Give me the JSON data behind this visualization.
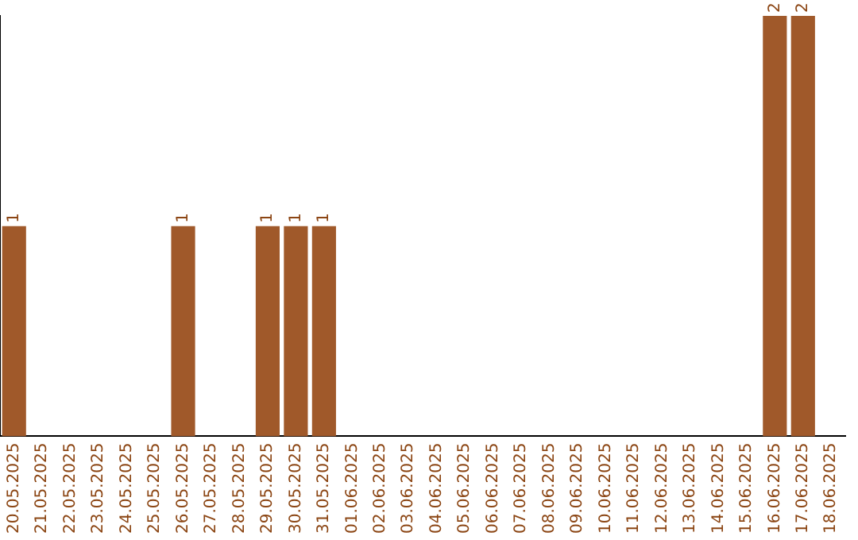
{
  "chart_data": {
    "type": "bar",
    "categories": [
      "20.05.2025",
      "21.05.2025",
      "22.05.2025",
      "23.05.2025",
      "24.05.2025",
      "25.05.2025",
      "26.05.2025",
      "27.05.2025",
      "28.05.2025",
      "29.05.2025",
      "30.05.2025",
      "31.05.2025",
      "01.06.2025",
      "02.06.2025",
      "03.06.2025",
      "04.06.2025",
      "05.06.2025",
      "06.06.2025",
      "07.06.2025",
      "08.06.2025",
      "09.06.2025",
      "10.06.2025",
      "11.06.2025",
      "12.06.2025",
      "13.06.2025",
      "14.06.2025",
      "15.06.2025",
      "16.06.2025",
      "17.06.2025",
      "18.06.2025"
    ],
    "values": [
      1,
      0,
      0,
      0,
      0,
      0,
      1,
      0,
      0,
      1,
      1,
      1,
      0,
      0,
      0,
      0,
      0,
      0,
      0,
      0,
      0,
      0,
      0,
      0,
      0,
      0,
      0,
      2,
      2,
      0
    ],
    "value_labels": [
      "1",
      null,
      null,
      null,
      null,
      null,
      "1",
      null,
      null,
      "1",
      "1",
      "1",
      null,
      null,
      null,
      null,
      null,
      null,
      null,
      null,
      null,
      null,
      null,
      null,
      null,
      null,
      null,
      "2",
      "2",
      null
    ],
    "color": "#a0592a",
    "grid": false,
    "legend": false
  }
}
